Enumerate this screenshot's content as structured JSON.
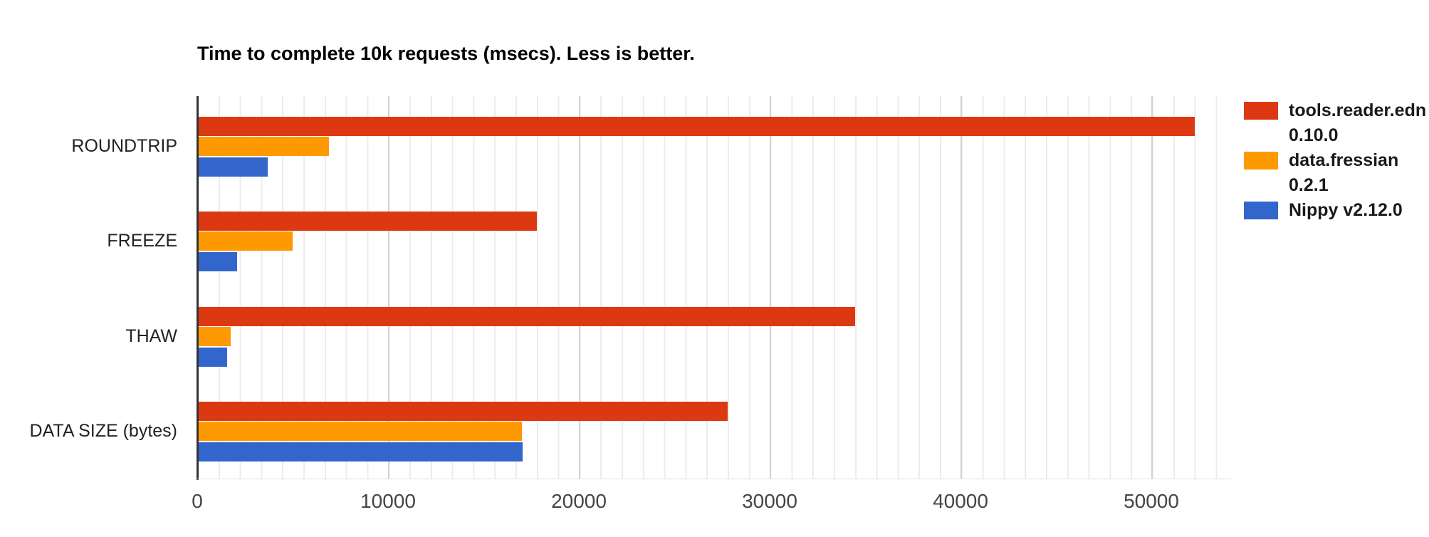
{
  "chart_data": {
    "type": "bar",
    "orientation": "horizontal",
    "title": "Time to complete 10k requests (msecs). Less is better.",
    "categories": [
      "ROUNDTRIP",
      "FREEZE",
      "THAW",
      "DATA SIZE (bytes)"
    ],
    "series": [
      {
        "name": "tools.reader.edn 0.10.0",
        "legend_label": "tools.reader.edn\n0.10.0",
        "color": "#dc3912",
        "values": [
          52300,
          17800,
          34500,
          27800
        ]
      },
      {
        "name": "data.fressian 0.2.1",
        "legend_label": "data.fressian\n0.2.1",
        "color": "#ff9900",
        "values": [
          6900,
          5000,
          1750,
          17000
        ]
      },
      {
        "name": "Nippy v2.12.0",
        "legend_label": "Nippy v2.12.0",
        "color": "#3366cc",
        "values": [
          3700,
          2100,
          1550,
          17050
        ]
      }
    ],
    "x_ticks": [
      0,
      10000,
      20000,
      30000,
      40000,
      50000
    ],
    "xlim": [
      0,
      54300
    ],
    "grid": true,
    "legend_position": "right",
    "colors": {
      "axis_line": "#333333",
      "major_gridline": "#d2d2d2",
      "minor_gridline": "#ececec",
      "tick_text": "#444444",
      "category_text": "#222222",
      "title_text": "#000000",
      "legend_text": "#1a1a1a",
      "background": "#ffffff"
    }
  }
}
